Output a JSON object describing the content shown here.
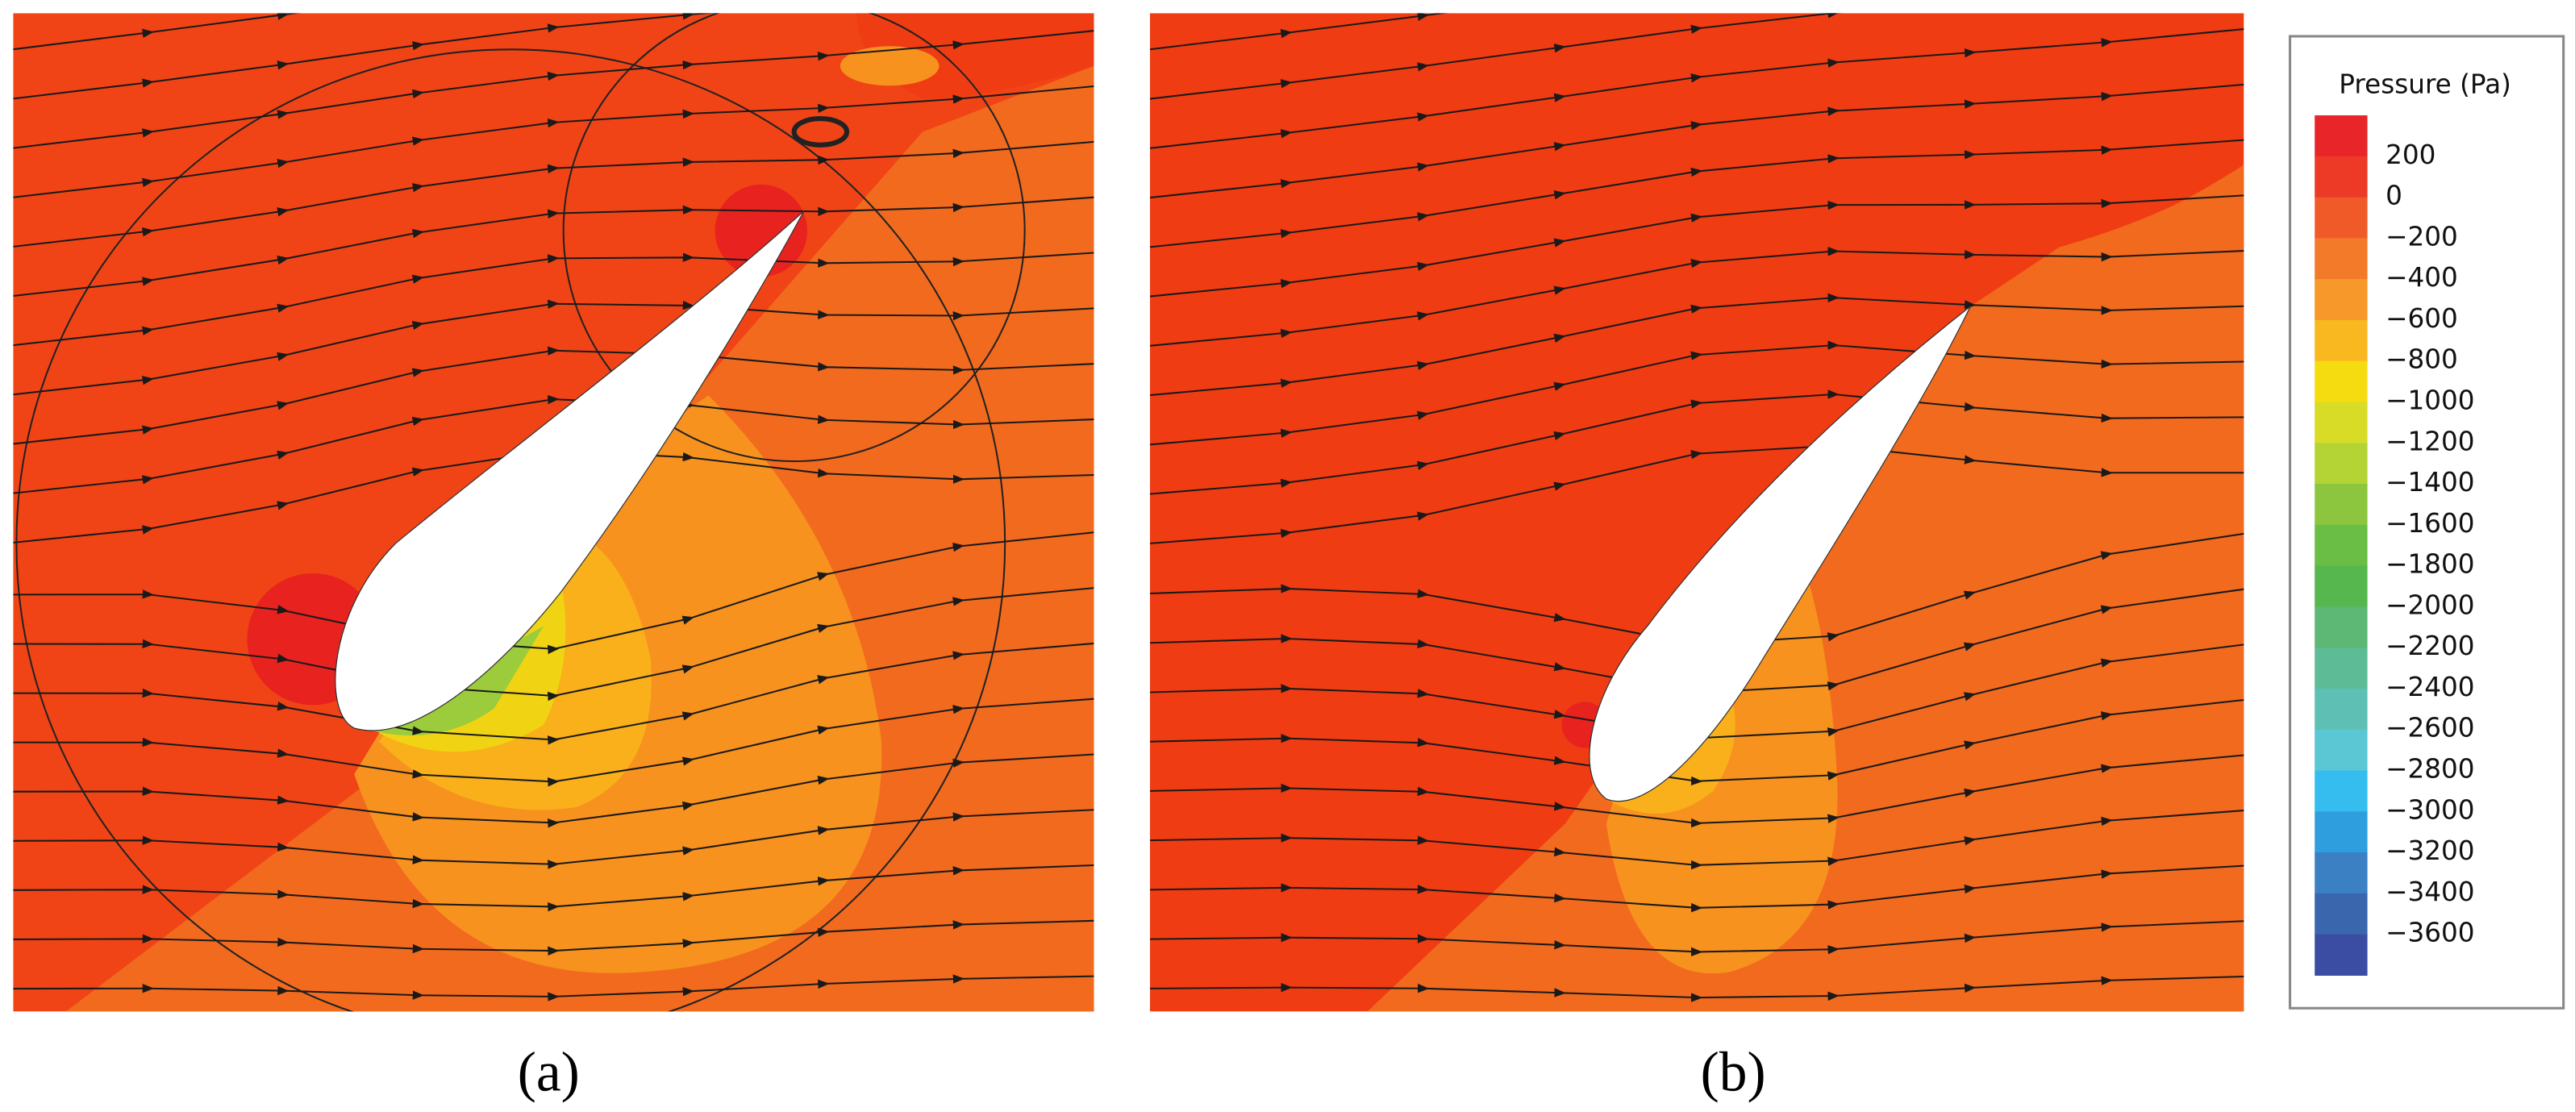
{
  "panels": [
    {
      "label": "(a)"
    },
    {
      "label": "(b)"
    }
  ],
  "legend": {
    "title": "Pressure (Pa)",
    "ticks": [
      200,
      0,
      {
        "value": -200,
        "label": "−200"
      },
      {
        "value": -400,
        "label": "−400"
      },
      {
        "value": -600,
        "label": "−600"
      },
      {
        "value": -800,
        "label": "−800"
      },
      {
        "value": -1000,
        "label": "−1000"
      },
      {
        "value": -1200,
        "label": "−1200"
      },
      {
        "value": -1400,
        "label": "−1400"
      },
      {
        "value": -1600,
        "label": "−1600"
      },
      {
        "value": -1800,
        "label": "−1800"
      },
      {
        "value": -2000,
        "label": "−2000"
      },
      {
        "value": -2200,
        "label": "−2200"
      },
      {
        "value": -2400,
        "label": "−2400"
      },
      {
        "value": -2600,
        "label": "−2600"
      },
      {
        "value": -2800,
        "label": "−2800"
      },
      {
        "value": -3000,
        "label": "−3000"
      },
      {
        "value": -3200,
        "label": "−3200"
      },
      {
        "value": -3400,
        "label": "−3400"
      },
      {
        "value": -3600,
        "label": "−3600"
      }
    ],
    "colors": [
      "#e8262a",
      "#ec3a26",
      "#ef5a28",
      "#f27a28",
      "#f6982a",
      "#fab820",
      "#f5dc10",
      "#d8dc26",
      "#b4d335",
      "#8cc63f",
      "#6abd45",
      "#55b74e",
      "#5cb874",
      "#5dbb96",
      "#5ec0b4",
      "#5bc6d4",
      "#34bdee",
      "#2f9ede",
      "#3a80c2",
      "#3a66ae",
      "#3b4da2"
    ]
  }
}
